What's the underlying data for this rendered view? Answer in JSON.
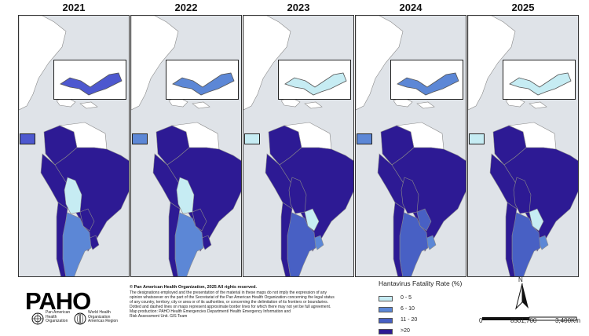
{
  "panels": [
    {
      "year": "2021",
      "inset_color": "#4d58cf",
      "colors": {
        "brazil": "#2d1a94",
        "peru": "#2d1a94",
        "colombia": "#2d1a94",
        "bolivia": "#c6ecf3",
        "paraguay": "#2d1a94",
        "uruguay": "#2d1a94",
        "argentina": "#5c87d6",
        "chile": "#2d1a94",
        "mexico_belize": "#ffffff"
      }
    },
    {
      "year": "2022",
      "inset_color": "#5c87d6",
      "colors": {
        "brazil": "#2d1a94",
        "peru": "#2d1a94",
        "colombia": "#2d1a94",
        "bolivia": "#c6ecf3",
        "paraguay": "#2d1a94",
        "uruguay": "#2d1a94",
        "argentina": "#5c87d6",
        "chile": "#2d1a94",
        "mexico_belize": "#ffffff"
      }
    },
    {
      "year": "2023",
      "inset_color": "#c6ecf3",
      "colors": {
        "brazil": "#2d1a94",
        "peru": "#2d1a94",
        "colombia": "#2d1a94",
        "bolivia": "#2d1a94",
        "paraguay": "#c6ecf3",
        "uruguay": "#5c87d6",
        "argentina": "#4860c4",
        "chile": "#2d1a94",
        "mexico_belize": "#ffffff"
      }
    },
    {
      "year": "2024",
      "inset_color": "#5c87d6",
      "colors": {
        "brazil": "#2d1a94",
        "peru": "#2d1a94",
        "colombia": "#2d1a94",
        "bolivia": "#2d1a94",
        "paraguay": "#4860c4",
        "uruguay": "#5c87d6",
        "argentina": "#4860c4",
        "chile": "#2d1a94",
        "mexico_belize": "#ffffff"
      }
    },
    {
      "year": "2025",
      "inset_color": "#c6ecf3",
      "colors": {
        "brazil": "#2d1a94",
        "peru": "#2d1a94",
        "colombia": "#2d1a94",
        "bolivia": "#2d1a94",
        "paraguay": "#c6ecf3",
        "uruguay": "#5c87d6",
        "argentina": "#4860c4",
        "chile": "#2d1a94",
        "mexico_belize": "#ffffff"
      }
    }
  ],
  "legend": {
    "title": "Hantavirus Fatality Rate (%)",
    "items": [
      {
        "label": "0 - 5",
        "color": "#c6ecf3"
      },
      {
        "label": "6 - 10",
        "color": "#5c87d6"
      },
      {
        "label": "11 - 20",
        "color": "#4860c4"
      },
      {
        "label": ">20",
        "color": "#2d1a94"
      }
    ]
  },
  "logo": {
    "text": "PAHO",
    "paho_line1": "Pan American",
    "paho_line2": "Health",
    "paho_line3": "Organization",
    "who_line1": "World Health",
    "who_line2": "Organization",
    "who_line3": "Americas Region"
  },
  "copyright": "© Pan American Health Organization, 2025 All rights reserved.",
  "disclaimer_lines": [
    "The designations employed and the presentation of the material in these maps do not imply the expression of any",
    "opinion whatsoever on the part of the Secretariat of the Pan American Health Organization concerning the legal status",
    "of any country, territory, city or area or of its authorities, or concerning the delimitation of its frontiers or boundaries.",
    "Dotted and dashed lines on maps represent approximate border lines for which there may not yet be full agreement.",
    "Map production: PAHO Health Emergencies Department/ Health Emergency Information and",
    "Risk Assessment Unit. GIS Team"
  ],
  "north_label": "N",
  "scale": {
    "tick_0": "0",
    "tick_mid": "8501,700",
    "tick_end": "3,400Km"
  },
  "colors": {
    "ocean": "#dfe3e8",
    "land_other": "#ffffff",
    "border": "#777777"
  }
}
